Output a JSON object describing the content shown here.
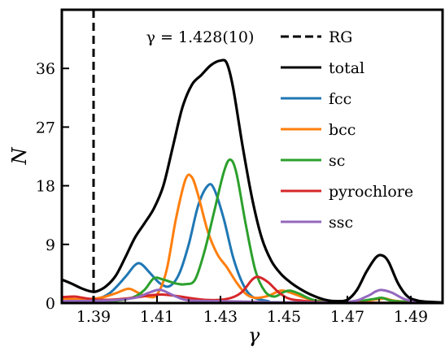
{
  "chart_data": {
    "type": "line",
    "title": "",
    "xlabel": "γ",
    "ylabel": "N",
    "xlim": [
      1.38,
      1.5
    ],
    "ylim": [
      0,
      45
    ],
    "x_ticks": [
      1.39,
      1.41,
      1.43,
      1.45,
      1.47,
      1.49
    ],
    "x_tick_labels": [
      "1.39",
      "1.41",
      "1.43",
      "1.45",
      "1.47",
      "1.49"
    ],
    "y_ticks": [
      0,
      9,
      18,
      27,
      36
    ],
    "y_tick_labels": [
      "0",
      "9",
      "18",
      "27",
      "36"
    ],
    "grid": false,
    "legend_position": "top-right",
    "annotation": "γ = 1.428(10)",
    "reference_line": {
      "name": "RG",
      "x": 1.39,
      "style": "dashed",
      "color": "#000000"
    },
    "series": [
      {
        "name": "total",
        "color": "#000000",
        "points": [
          [
            1.38,
            3.6
          ],
          [
            1.383,
            3.0
          ],
          [
            1.386,
            2.3
          ],
          [
            1.389,
            1.8
          ],
          [
            1.391,
            1.8
          ],
          [
            1.394,
            2.6
          ],
          [
            1.397,
            4.2
          ],
          [
            1.4,
            7.0
          ],
          [
            1.403,
            10.0
          ],
          [
            1.406,
            12.2
          ],
          [
            1.409,
            14.5
          ],
          [
            1.412,
            18.0
          ],
          [
            1.415,
            24.0
          ],
          [
            1.418,
            30.0
          ],
          [
            1.421,
            33.5
          ],
          [
            1.424,
            35.0
          ],
          [
            1.427,
            36.5
          ],
          [
            1.43,
            37.2
          ],
          [
            1.432,
            36.8
          ],
          [
            1.434,
            33.0
          ],
          [
            1.437,
            24.0
          ],
          [
            1.44,
            16.0
          ],
          [
            1.443,
            10.0
          ],
          [
            1.446,
            6.5
          ],
          [
            1.449,
            4.5
          ],
          [
            1.452,
            3.2
          ],
          [
            1.455,
            2.2
          ],
          [
            1.458,
            1.4
          ],
          [
            1.461,
            0.8
          ],
          [
            1.464,
            0.4
          ],
          [
            1.467,
            0.3
          ],
          [
            1.47,
            0.5
          ],
          [
            1.473,
            2.0
          ],
          [
            1.476,
            4.8
          ],
          [
            1.479,
            7.0
          ],
          [
            1.481,
            7.3
          ],
          [
            1.483,
            6.3
          ],
          [
            1.486,
            3.0
          ],
          [
            1.489,
            1.0
          ],
          [
            1.492,
            0.4
          ],
          [
            1.495,
            0.2
          ],
          [
            1.5,
            0.1
          ]
        ]
      },
      {
        "name": "fcc",
        "color": "#1f77b4",
        "points": [
          [
            1.38,
            0.2
          ],
          [
            1.39,
            0.6
          ],
          [
            1.395,
            1.5
          ],
          [
            1.4,
            4.0
          ],
          [
            1.403,
            5.8
          ],
          [
            1.405,
            6.0
          ],
          [
            1.408,
            4.5
          ],
          [
            1.411,
            3.0
          ],
          [
            1.414,
            2.6
          ],
          [
            1.417,
            4.5
          ],
          [
            1.42,
            9.0
          ],
          [
            1.423,
            15.0
          ],
          [
            1.426,
            18.0
          ],
          [
            1.428,
            17.5
          ],
          [
            1.431,
            13.0
          ],
          [
            1.434,
            7.0
          ],
          [
            1.437,
            3.0
          ],
          [
            1.44,
            1.0
          ],
          [
            1.445,
            0.3
          ],
          [
            1.45,
            0.1
          ],
          [
            1.5,
            0.0
          ]
        ]
      },
      {
        "name": "bcc",
        "color": "#ff7f0e",
        "points": [
          [
            1.38,
            0.7
          ],
          [
            1.386,
            0.6
          ],
          [
            1.392,
            0.8
          ],
          [
            1.397,
            1.5
          ],
          [
            1.401,
            2.2
          ],
          [
            1.404,
            1.6
          ],
          [
            1.407,
            1.0
          ],
          [
            1.41,
            1.3
          ],
          [
            1.413,
            5.0
          ],
          [
            1.416,
            13.0
          ],
          [
            1.419,
            19.0
          ],
          [
            1.421,
            19.3
          ],
          [
            1.423,
            16.5
          ],
          [
            1.426,
            11.0
          ],
          [
            1.429,
            7.5
          ],
          [
            1.432,
            5.5
          ],
          [
            1.435,
            3.2
          ],
          [
            1.438,
            1.4
          ],
          [
            1.441,
            0.8
          ],
          [
            1.445,
            1.1
          ],
          [
            1.449,
            1.9
          ],
          [
            1.452,
            1.6
          ],
          [
            1.456,
            0.9
          ],
          [
            1.46,
            0.4
          ],
          [
            1.47,
            0.1
          ],
          [
            1.48,
            0.6
          ],
          [
            1.482,
            0.7
          ],
          [
            1.486,
            0.3
          ],
          [
            1.5,
            0.0
          ]
        ]
      },
      {
        "name": "sc",
        "color": "#2ca02c",
        "points": [
          [
            1.38,
            0.2
          ],
          [
            1.395,
            0.3
          ],
          [
            1.402,
            0.8
          ],
          [
            1.406,
            2.0
          ],
          [
            1.409,
            3.8
          ],
          [
            1.412,
            3.6
          ],
          [
            1.416,
            3.0
          ],
          [
            1.419,
            2.9
          ],
          [
            1.422,
            3.6
          ],
          [
            1.425,
            8.0
          ],
          [
            1.428,
            14.0
          ],
          [
            1.431,
            20.0
          ],
          [
            1.433,
            22.0
          ],
          [
            1.435,
            20.0
          ],
          [
            1.438,
            12.0
          ],
          [
            1.441,
            5.0
          ],
          [
            1.444,
            1.8
          ],
          [
            1.447,
            1.0
          ],
          [
            1.45,
            1.7
          ],
          [
            1.452,
            1.9
          ],
          [
            1.455,
            1.4
          ],
          [
            1.46,
            0.4
          ],
          [
            1.47,
            0.1
          ],
          [
            1.478,
            0.6
          ],
          [
            1.481,
            0.8
          ],
          [
            1.485,
            0.3
          ],
          [
            1.5,
            0.0
          ]
        ]
      },
      {
        "name": "pyrochlore",
        "color": "#d62728",
        "points": [
          [
            1.38,
            0.9
          ],
          [
            1.384,
            1.0
          ],
          [
            1.388,
            0.7
          ],
          [
            1.392,
            0.5
          ],
          [
            1.398,
            0.6
          ],
          [
            1.404,
            0.9
          ],
          [
            1.408,
            1.2
          ],
          [
            1.412,
            1.3
          ],
          [
            1.416,
            1.1
          ],
          [
            1.42,
            0.8
          ],
          [
            1.425,
            0.5
          ],
          [
            1.43,
            0.5
          ],
          [
            1.434,
            0.9
          ],
          [
            1.437,
            1.8
          ],
          [
            1.44,
            3.6
          ],
          [
            1.442,
            4.0
          ],
          [
            1.445,
            3.2
          ],
          [
            1.448,
            1.8
          ],
          [
            1.451,
            0.8
          ],
          [
            1.455,
            0.4
          ],
          [
            1.465,
            0.1
          ],
          [
            1.5,
            0.0
          ]
        ]
      },
      {
        "name": "ssc",
        "color": "#9467bd",
        "points": [
          [
            1.38,
            0.3
          ],
          [
            1.395,
            0.4
          ],
          [
            1.403,
            0.8
          ],
          [
            1.407,
            1.5
          ],
          [
            1.41,
            2.0
          ],
          [
            1.412,
            1.9
          ],
          [
            1.416,
            1.0
          ],
          [
            1.42,
            0.4
          ],
          [
            1.43,
            0.3
          ],
          [
            1.44,
            0.2
          ],
          [
            1.45,
            0.1
          ],
          [
            1.47,
            0.2
          ],
          [
            1.476,
            1.0
          ],
          [
            1.479,
            1.8
          ],
          [
            1.481,
            2.0
          ],
          [
            1.484,
            1.6
          ],
          [
            1.488,
            0.6
          ],
          [
            1.492,
            0.2
          ],
          [
            1.5,
            0.0
          ]
        ]
      }
    ]
  },
  "legend": {
    "items": [
      {
        "name": "RG",
        "color": "#000000",
        "style": "dashed"
      },
      {
        "name": "total",
        "color": "#000000",
        "style": "solid"
      },
      {
        "name": "fcc",
        "color": "#1f77b4",
        "style": "solid"
      },
      {
        "name": "bcc",
        "color": "#ff7f0e",
        "style": "solid"
      },
      {
        "name": "sc",
        "color": "#2ca02c",
        "style": "solid"
      },
      {
        "name": "pyrochlore",
        "color": "#d62728",
        "style": "solid"
      },
      {
        "name": "ssc",
        "color": "#9467bd",
        "style": "solid"
      }
    ]
  }
}
